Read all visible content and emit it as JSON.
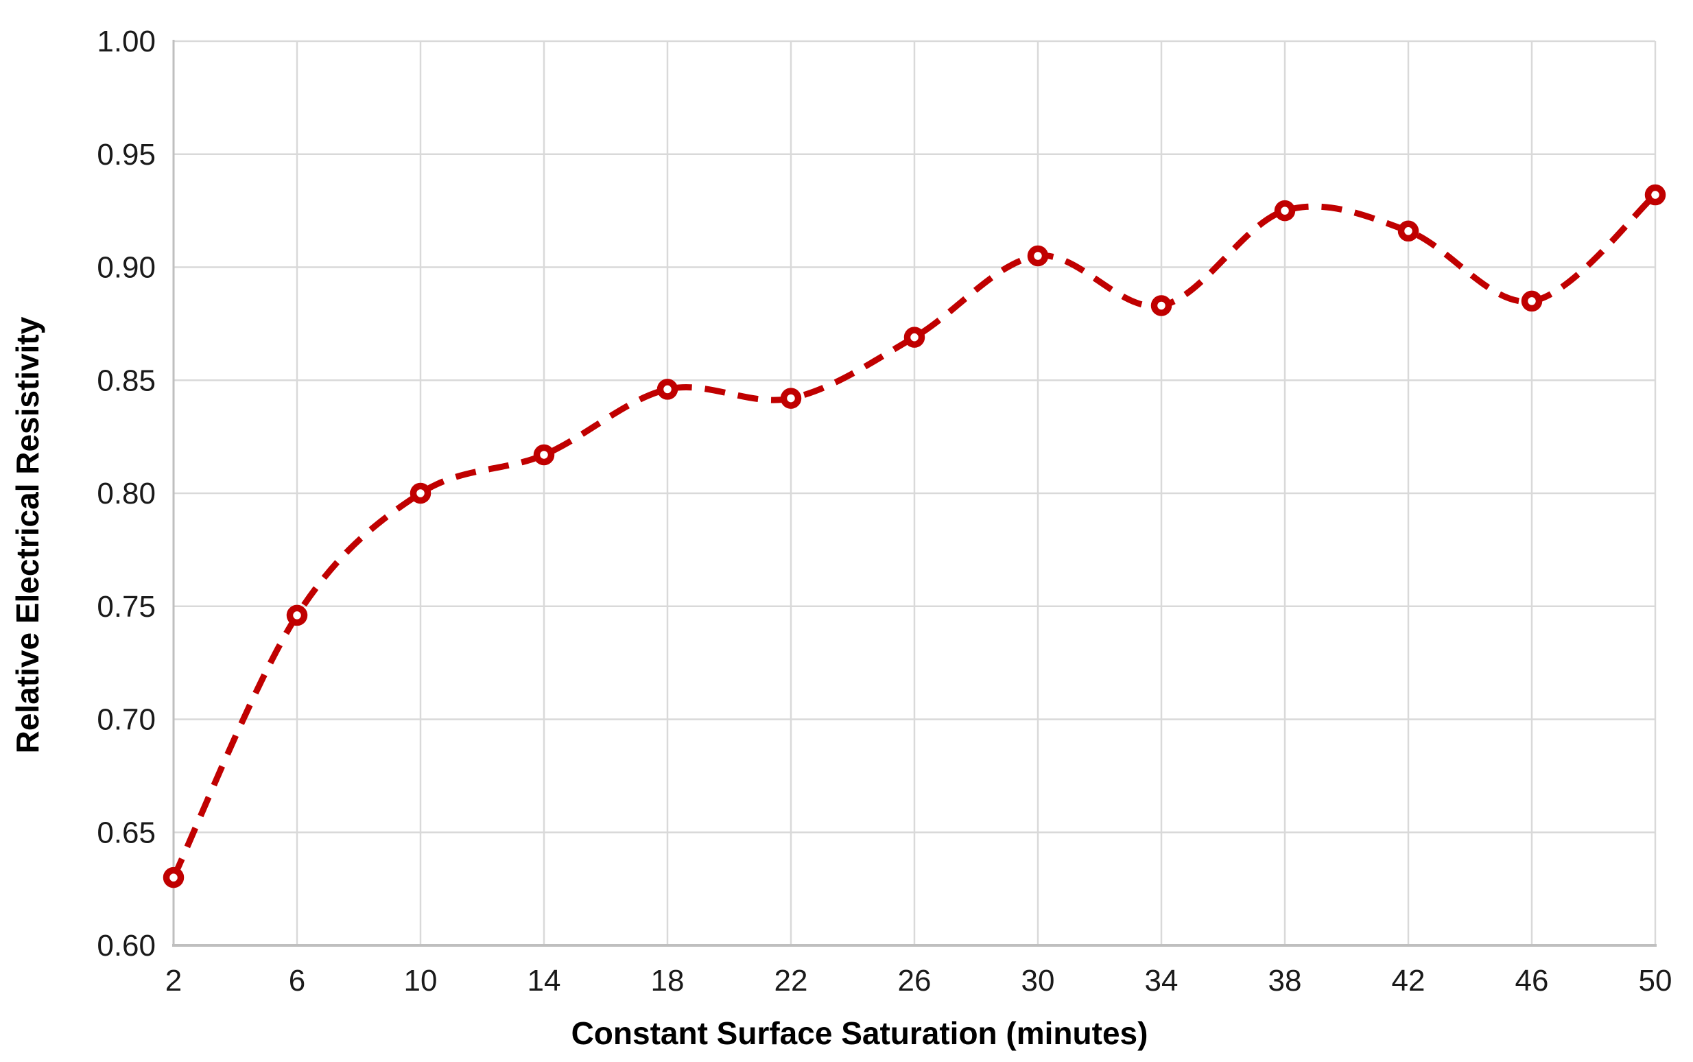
{
  "chart_data": {
    "type": "line",
    "title": "",
    "xlabel": "Constant Surface Saturation (minutes)",
    "ylabel": "Relative Electrical Resistivity",
    "x": [
      2,
      6,
      10,
      14,
      18,
      22,
      26,
      30,
      34,
      38,
      42,
      46,
      50
    ],
    "series": [
      {
        "name": "Relative Electrical Resistivity",
        "values": [
          0.63,
          0.746,
          0.8,
          0.817,
          0.846,
          0.842,
          0.869,
          0.905,
          0.883,
          0.925,
          0.916,
          0.885,
          0.932
        ]
      }
    ],
    "xlim": [
      2,
      50
    ],
    "ylim": [
      0.6,
      1.0
    ],
    "x_ticks": [
      "2",
      "6",
      "10",
      "14",
      "18",
      "22",
      "26",
      "30",
      "34",
      "38",
      "42",
      "46",
      "50"
    ],
    "y_ticks": [
      "0.60",
      "0.65",
      "0.70",
      "0.75",
      "0.80",
      "0.85",
      "0.90",
      "0.95",
      "1.00"
    ],
    "grid": true,
    "legend": false,
    "line_style": "dashed",
    "smooth": true,
    "marker": "open-circle",
    "colors": {
      "series": "#C00000",
      "marker_fill": "#FFFFFF",
      "gridline": "#D9D9D9",
      "axis_line": "#BFBFBF",
      "tick_text": "#1A1A1A",
      "title_text": "#000000",
      "background": "#FFFFFF"
    }
  }
}
